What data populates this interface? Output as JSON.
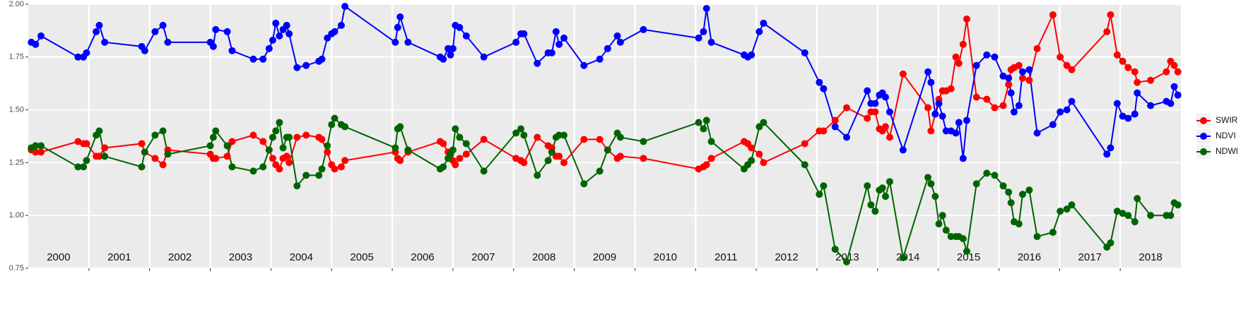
{
  "chart_data": {
    "type": "line",
    "x": [
      2000.05,
      2000.12,
      2000.21,
      2000.82,
      2000.91,
      2000.96,
      2001.12,
      2001.17,
      2001.26,
      2001.87,
      2001.92,
      2002.09,
      2002.22,
      2002.3,
      2003.0,
      2003.05,
      2003.09,
      2003.28,
      2003.36,
      2003.71,
      2003.87,
      2003.97,
      2004.03,
      2004.08,
      2004.14,
      2004.2,
      2004.26,
      2004.3,
      2004.43,
      2004.58,
      2004.79,
      2004.84,
      2004.93,
      2005.0,
      2005.05,
      2005.16,
      2005.22,
      2006.05,
      2006.09,
      2006.13,
      2006.26,
      2006.79,
      2006.84,
      2006.92,
      2006.96,
      2007.0,
      2007.04,
      2007.11,
      2007.22,
      2007.51,
      2008.04,
      2008.12,
      2008.17,
      2008.39,
      2008.57,
      2008.63,
      2008.7,
      2008.75,
      2008.83,
      2009.16,
      2009.42,
      2009.55,
      2009.71,
      2009.76,
      2010.14,
      2011.05,
      2011.13,
      2011.18,
      2011.26,
      2011.8,
      2011.86,
      2011.92,
      2012.05,
      2012.12,
      2012.8,
      2013.04,
      2013.11,
      2013.3,
      2013.49,
      2013.83,
      2013.89,
      2013.96,
      2014.03,
      2014.08,
      2014.13,
      2014.2,
      2014.42,
      2014.83,
      2014.88,
      2014.95,
      2015.01,
      2015.07,
      2015.13,
      2015.21,
      2015.29,
      2015.34,
      2015.41,
      2015.47,
      2015.63,
      2015.8,
      2015.93,
      2016.07,
      2016.16,
      2016.2,
      2016.25,
      2016.33,
      2016.39,
      2016.5,
      2016.63,
      2016.89,
      2017.01,
      2017.12,
      2017.2,
      2017.78,
      2017.84,
      2017.95,
      2018.04,
      2018.13,
      2018.24,
      2018.28,
      2018.5,
      2018.76,
      2018.83,
      2018.89,
      2018.95
    ],
    "series": [
      {
        "name": "SWIR",
        "color": "#ff0000",
        "values": [
          1.31,
          1.3,
          1.3,
          1.35,
          1.34,
          1.34,
          1.28,
          1.28,
          1.32,
          1.34,
          1.3,
          1.27,
          1.24,
          1.31,
          1.29,
          1.27,
          1.27,
          1.28,
          1.35,
          1.38,
          1.35,
          1.31,
          1.27,
          1.24,
          1.22,
          1.27,
          1.28,
          1.25,
          1.37,
          1.38,
          1.37,
          1.36,
          1.3,
          1.24,
          1.22,
          1.23,
          1.26,
          1.3,
          1.27,
          1.26,
          1.3,
          1.35,
          1.34,
          1.3,
          1.29,
          1.26,
          1.24,
          1.27,
          1.29,
          1.36,
          1.27,
          1.26,
          1.25,
          1.37,
          1.33,
          1.32,
          1.28,
          1.28,
          1.25,
          1.36,
          1.36,
          1.31,
          1.27,
          1.28,
          1.27,
          1.22,
          1.23,
          1.24,
          1.27,
          1.35,
          1.34,
          1.32,
          1.29,
          1.25,
          1.34,
          1.4,
          1.4,
          1.45,
          1.51,
          1.46,
          1.49,
          1.49,
          1.41,
          1.4,
          1.42,
          1.37,
          1.67,
          1.51,
          1.4,
          1.48,
          1.55,
          1.59,
          1.59,
          1.6,
          1.75,
          1.72,
          1.81,
          1.93,
          1.56,
          1.55,
          1.51,
          1.52,
          1.62,
          1.69,
          1.7,
          1.71,
          1.65,
          1.64,
          1.79,
          1.95,
          1.75,
          1.71,
          1.69,
          1.87,
          1.95,
          1.76,
          1.73,
          1.7,
          1.68,
          1.63,
          1.64,
          1.68,
          1.73,
          1.71,
          1.68
        ]
      },
      {
        "name": "NDVI",
        "color": "#0000ff",
        "values": [
          1.82,
          1.81,
          1.85,
          1.75,
          1.75,
          1.77,
          1.87,
          1.9,
          1.82,
          1.8,
          1.78,
          1.87,
          1.9,
          1.82,
          1.82,
          1.8,
          1.88,
          1.87,
          1.78,
          1.74,
          1.74,
          1.79,
          1.83,
          1.91,
          1.85,
          1.88,
          1.9,
          1.86,
          1.7,
          1.71,
          1.73,
          1.74,
          1.84,
          1.86,
          1.87,
          1.9,
          1.99,
          1.82,
          1.89,
          1.94,
          1.82,
          1.75,
          1.74,
          1.79,
          1.76,
          1.79,
          1.9,
          1.89,
          1.85,
          1.75,
          1.82,
          1.86,
          1.86,
          1.72,
          1.77,
          1.77,
          1.87,
          1.81,
          1.84,
          1.71,
          1.74,
          1.79,
          1.85,
          1.82,
          1.88,
          1.84,
          1.87,
          1.98,
          1.82,
          1.76,
          1.75,
          1.76,
          1.87,
          1.91,
          1.77,
          1.63,
          1.6,
          1.42,
          1.37,
          1.59,
          1.53,
          1.53,
          1.57,
          1.58,
          1.56,
          1.49,
          1.31,
          1.68,
          1.63,
          1.48,
          1.53,
          1.47,
          1.4,
          1.4,
          1.39,
          1.44,
          1.27,
          1.45,
          1.71,
          1.76,
          1.75,
          1.66,
          1.65,
          1.58,
          1.49,
          1.52,
          1.68,
          1.69,
          1.39,
          1.43,
          1.49,
          1.5,
          1.54,
          1.29,
          1.32,
          1.53,
          1.47,
          1.46,
          1.48,
          1.58,
          1.52,
          1.54,
          1.53,
          1.61,
          1.57
        ]
      },
      {
        "name": "NDWI",
        "color": "#006400",
        "values": [
          1.32,
          1.33,
          1.33,
          1.23,
          1.23,
          1.26,
          1.38,
          1.4,
          1.28,
          1.23,
          1.3,
          1.38,
          1.4,
          1.29,
          1.33,
          1.37,
          1.4,
          1.33,
          1.23,
          1.21,
          1.23,
          1.31,
          1.37,
          1.4,
          1.44,
          1.32,
          1.37,
          1.37,
          1.14,
          1.19,
          1.19,
          1.22,
          1.33,
          1.43,
          1.46,
          1.43,
          1.42,
          1.32,
          1.41,
          1.42,
          1.31,
          1.22,
          1.23,
          1.27,
          1.29,
          1.31,
          1.41,
          1.37,
          1.34,
          1.21,
          1.39,
          1.41,
          1.38,
          1.19,
          1.26,
          1.3,
          1.37,
          1.38,
          1.38,
          1.15,
          1.21,
          1.31,
          1.39,
          1.37,
          1.35,
          1.44,
          1.41,
          1.45,
          1.35,
          1.22,
          1.24,
          1.26,
          1.42,
          1.44,
          1.24,
          1.1,
          1.14,
          0.84,
          0.78,
          1.14,
          1.05,
          1.02,
          1.12,
          1.13,
          1.09,
          1.16,
          0.8,
          1.18,
          1.15,
          1.09,
          0.96,
          1.0,
          0.93,
          0.9,
          0.9,
          0.9,
          0.89,
          0.83,
          1.15,
          1.2,
          1.19,
          1.14,
          1.11,
          1.06,
          0.97,
          0.96,
          1.1,
          1.12,
          0.9,
          0.92,
          1.02,
          1.03,
          1.05,
          0.85,
          0.87,
          1.02,
          1.01,
          1.0,
          0.97,
          1.08,
          1.0,
          1.0,
          1.0,
          1.06,
          1.05
        ]
      }
    ],
    "xlim": [
      2000,
      2019
    ],
    "xticks": [
      2001,
      2002,
      2003,
      2004,
      2005,
      2006,
      2007,
      2008,
      2009,
      2010,
      2011,
      2012,
      2013,
      2014,
      2015,
      2016,
      2017,
      2018
    ],
    "ylim": [
      0.75,
      2.0
    ],
    "yticks": [
      {
        "value": 0.75,
        "label": "0.75"
      },
      {
        "value": 1.0,
        "label": "1.00"
      },
      {
        "value": 1.25,
        "label": "1.25"
      },
      {
        "value": 1.5,
        "label": "1.50"
      },
      {
        "value": 1.75,
        "label": "1.75"
      },
      {
        "value": 2.0,
        "label": "2.00"
      }
    ],
    "grid": true,
    "legend": "right",
    "annotations": [
      {
        "x": 2000.5,
        "y": 0.8,
        "text": "2000"
      },
      {
        "x": 2001.5,
        "y": 0.8,
        "text": "2001"
      },
      {
        "x": 2002.5,
        "y": 0.8,
        "text": "2002"
      },
      {
        "x": 2003.5,
        "y": 0.8,
        "text": "2003"
      },
      {
        "x": 2004.5,
        "y": 0.8,
        "text": "2004"
      },
      {
        "x": 2005.5,
        "y": 0.8,
        "text": "2005"
      },
      {
        "x": 2006.5,
        "y": 0.8,
        "text": "2006"
      },
      {
        "x": 2007.5,
        "y": 0.8,
        "text": "2007"
      },
      {
        "x": 2008.5,
        "y": 0.8,
        "text": "2008"
      },
      {
        "x": 2009.5,
        "y": 0.8,
        "text": "2009"
      },
      {
        "x": 2010.5,
        "y": 0.8,
        "text": "2010"
      },
      {
        "x": 2011.5,
        "y": 0.8,
        "text": "2011"
      },
      {
        "x": 2012.5,
        "y": 0.8,
        "text": "2012"
      },
      {
        "x": 2013.5,
        "y": 0.8,
        "text": "2013"
      },
      {
        "x": 2014.5,
        "y": 0.8,
        "text": "2014"
      },
      {
        "x": 2015.5,
        "y": 0.8,
        "text": "2015"
      },
      {
        "x": 2016.5,
        "y": 0.8,
        "text": "2016"
      },
      {
        "x": 2017.5,
        "y": 0.8,
        "text": "2017"
      },
      {
        "x": 2018.5,
        "y": 0.8,
        "text": "2018"
      }
    ]
  }
}
